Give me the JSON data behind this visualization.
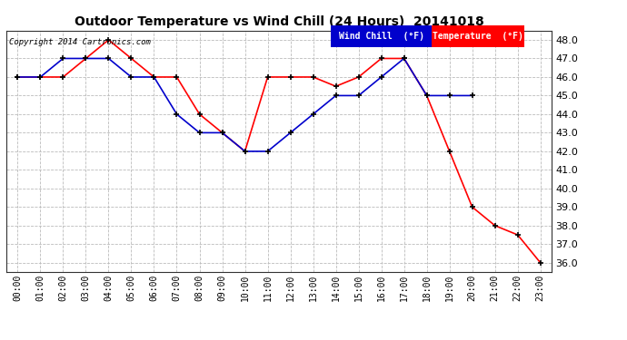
{
  "title": "Outdoor Temperature vs Wind Chill (24 Hours)  20141018",
  "copyright_text": "Copyright 2014 Cartronics.com",
  "x_labels": [
    "00:00",
    "01:00",
    "02:00",
    "03:00",
    "04:00",
    "05:00",
    "06:00",
    "07:00",
    "08:00",
    "09:00",
    "10:00",
    "11:00",
    "12:00",
    "13:00",
    "14:00",
    "15:00",
    "16:00",
    "17:00",
    "18:00",
    "19:00",
    "20:00",
    "21:00",
    "22:00",
    "23:00"
  ],
  "temperature": [
    46.0,
    46.0,
    46.0,
    47.0,
    48.0,
    47.0,
    46.0,
    46.0,
    44.0,
    43.0,
    42.0,
    46.0,
    46.0,
    46.0,
    45.5,
    46.0,
    47.0,
    47.0,
    45.0,
    42.0,
    39.0,
    38.0,
    37.5,
    36.0
  ],
  "wind_chill": [
    46.0,
    46.0,
    47.0,
    47.0,
    47.0,
    46.0,
    46.0,
    44.0,
    43.0,
    43.0,
    42.0,
    42.0,
    43.0,
    44.0,
    45.0,
    45.0,
    46.0,
    47.0,
    45.0,
    45.0,
    45.0,
    null,
    null,
    null
  ],
  "ylim_min": 35.5,
  "ylim_max": 48.5,
  "yticks": [
    36.0,
    37.0,
    38.0,
    39.0,
    40.0,
    41.0,
    42.0,
    43.0,
    44.0,
    45.0,
    46.0,
    47.0,
    48.0
  ],
  "temp_color": "#ff0000",
  "wind_chill_color": "#0000cc",
  "marker_color": "#000000",
  "bg_color": "#ffffff",
  "grid_color": "#bbbbbb",
  "legend_wind_bg": "#0000cc",
  "legend_temp_bg": "#ff0000",
  "legend_text_color": "#ffffff",
  "fig_width": 6.9,
  "fig_height": 3.75,
  "dpi": 100
}
